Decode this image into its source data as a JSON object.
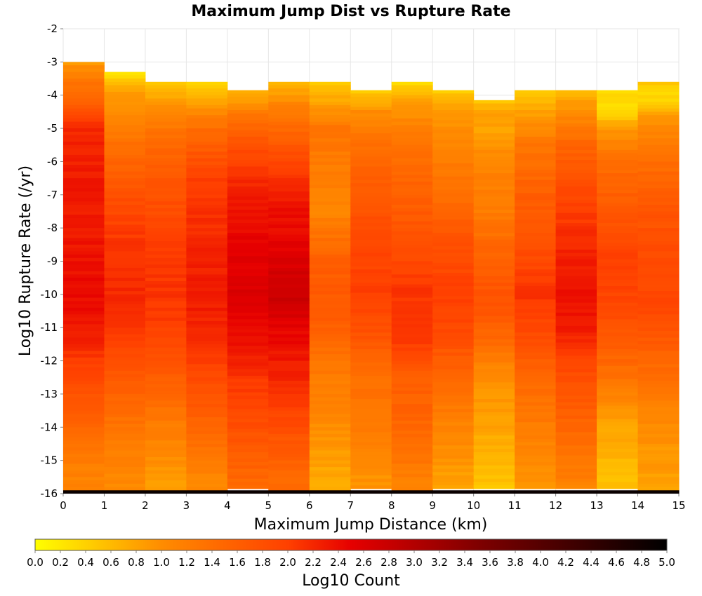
{
  "chart_data": {
    "type": "heatmap",
    "title": "Maximum Jump Dist vs Rupture Rate",
    "xlabel": "Maximum Jump Distance (km)",
    "ylabel": "Log10 Rupture Rate (/yr)",
    "xlim": [
      0,
      15
    ],
    "ylim": [
      -16,
      -2
    ],
    "x_ticks": [
      "0",
      "1",
      "2",
      "3",
      "4",
      "5",
      "6",
      "7",
      "8",
      "9",
      "10",
      "11",
      "12",
      "13",
      "14",
      "15"
    ],
    "y_ticks": [
      "-2",
      "-3",
      "-4",
      "-5",
      "-6",
      "-7",
      "-8",
      "-9",
      "-10",
      "-11",
      "-12",
      "-13",
      "-14",
      "-15",
      "-16"
    ],
    "grid": true,
    "x_bin_width": 1,
    "y_bin_width": 0.1,
    "colorbar": {
      "label": "Log10 Count",
      "range": [
        0,
        5
      ],
      "ticks": [
        "0.0",
        "0.2",
        "0.4",
        "0.6",
        "0.8",
        "1.0",
        "1.2",
        "1.4",
        "1.6",
        "1.8",
        "2.0",
        "2.2",
        "2.4",
        "2.6",
        "2.8",
        "3.0",
        "3.2",
        "3.4",
        "3.6",
        "3.8",
        "4.0",
        "4.2",
        "4.4",
        "4.6",
        "4.8",
        "5.0"
      ],
      "colors": [
        "#ffff00",
        "#ff8c00",
        "#ff4000",
        "#e60000",
        "#800000",
        "#000000"
      ]
    },
    "columns": [
      {
        "x": 0.5,
        "top": -3.0,
        "profile": [
          [
            -3.0,
            0.9
          ],
          [
            -3.6,
            1.3
          ],
          [
            -4.4,
            1.7
          ],
          [
            -5.0,
            2.2
          ],
          [
            -6.5,
            2.3
          ],
          [
            -8.0,
            2.3
          ],
          [
            -9.5,
            2.4
          ],
          [
            -10.5,
            2.4
          ],
          [
            -11.5,
            2.2
          ],
          [
            -12.5,
            1.9
          ],
          [
            -13.5,
            1.6
          ],
          [
            -15.0,
            1.2
          ],
          [
            -15.9,
            1.1
          ]
        ]
      },
      {
        "x": 1.5,
        "top": -3.3,
        "profile": [
          [
            -3.3,
            0.2
          ],
          [
            -3.8,
            0.8
          ],
          [
            -4.5,
            1.0
          ],
          [
            -5.5,
            1.4
          ],
          [
            -7.0,
            1.8
          ],
          [
            -8.5,
            2.1
          ],
          [
            -10.0,
            2.2
          ],
          [
            -11.0,
            2.1
          ],
          [
            -12.5,
            1.7
          ],
          [
            -14.0,
            1.3
          ],
          [
            -15.9,
            1.0
          ]
        ]
      },
      {
        "x": 2.5,
        "top": -3.6,
        "profile": [
          [
            -3.6,
            0.4
          ],
          [
            -4.2,
            0.9
          ],
          [
            -5.0,
            1.3
          ],
          [
            -6.5,
            1.7
          ],
          [
            -8.5,
            2.0
          ],
          [
            -10.0,
            2.1
          ],
          [
            -11.0,
            2.0
          ],
          [
            -12.5,
            1.6
          ],
          [
            -14.0,
            1.2
          ],
          [
            -15.9,
            0.8
          ]
        ]
      },
      {
        "x": 3.5,
        "top": -3.6,
        "profile": [
          [
            -3.6,
            0.3
          ],
          [
            -4.2,
            0.8
          ],
          [
            -5.0,
            1.4
          ],
          [
            -6.5,
            2.0
          ],
          [
            -8.5,
            2.2
          ],
          [
            -10.0,
            2.3
          ],
          [
            -11.0,
            2.2
          ],
          [
            -12.5,
            1.9
          ],
          [
            -14.0,
            1.5
          ],
          [
            -15.9,
            1.0
          ]
        ]
      },
      {
        "x": 4.5,
        "top": -3.85,
        "profile": [
          [
            -3.85,
            0.6
          ],
          [
            -4.5,
            1.2
          ],
          [
            -5.5,
            1.8
          ],
          [
            -7.0,
            2.3
          ],
          [
            -8.5,
            2.5
          ],
          [
            -10.0,
            2.6
          ],
          [
            -11.5,
            2.4
          ],
          [
            -12.5,
            2.1
          ],
          [
            -14.0,
            1.8
          ],
          [
            -15.9,
            1.4
          ]
        ]
      },
      {
        "x": 5.5,
        "top": -3.6,
        "profile": [
          [
            -3.6,
            0.6
          ],
          [
            -4.3,
            1.1
          ],
          [
            -5.5,
            1.7
          ],
          [
            -7.0,
            2.3
          ],
          [
            -8.5,
            2.5
          ],
          [
            -10.0,
            2.8
          ],
          [
            -11.0,
            2.5
          ],
          [
            -12.0,
            2.3
          ],
          [
            -13.0,
            2.1
          ],
          [
            -14.5,
            1.7
          ],
          [
            -15.9,
            1.4
          ]
        ]
      },
      {
        "x": 6.5,
        "top": -3.6,
        "profile": [
          [
            -3.6,
            0.4
          ],
          [
            -4.2,
            0.8
          ],
          [
            -5.0,
            1.3
          ],
          [
            -6.5,
            1.2
          ],
          [
            -7.5,
            1.1
          ],
          [
            -9.0,
            1.6
          ],
          [
            -10.5,
            1.7
          ],
          [
            -12.0,
            1.3
          ],
          [
            -14.0,
            1.0
          ],
          [
            -15.9,
            0.7
          ]
        ]
      },
      {
        "x": 7.5,
        "top": -3.85,
        "profile": [
          [
            -3.85,
            0.4
          ],
          [
            -4.5,
            1.0
          ],
          [
            -5.5,
            1.4
          ],
          [
            -7.0,
            1.7
          ],
          [
            -8.5,
            1.9
          ],
          [
            -10.0,
            2.0
          ],
          [
            -11.0,
            1.8
          ],
          [
            -12.5,
            1.4
          ],
          [
            -14.0,
            1.2
          ],
          [
            -15.9,
            0.9
          ]
        ]
      },
      {
        "x": 8.5,
        "top": -3.6,
        "profile": [
          [
            -3.6,
            0.3
          ],
          [
            -4.2,
            0.8
          ],
          [
            -5.0,
            1.2
          ],
          [
            -6.5,
            1.5
          ],
          [
            -8.5,
            1.8
          ],
          [
            -10.0,
            2.1
          ],
          [
            -11.5,
            2.0
          ],
          [
            -12.5,
            1.6
          ],
          [
            -14.0,
            1.5
          ],
          [
            -15.0,
            1.3
          ],
          [
            -15.9,
            1.1
          ]
        ]
      },
      {
        "x": 9.5,
        "top": -3.85,
        "profile": [
          [
            -3.85,
            0.4
          ],
          [
            -4.5,
            0.9
          ],
          [
            -5.5,
            1.1
          ],
          [
            -7.0,
            1.4
          ],
          [
            -8.5,
            1.8
          ],
          [
            -10.0,
            2.0
          ],
          [
            -11.0,
            1.9
          ],
          [
            -12.5,
            1.5
          ],
          [
            -14.0,
            1.1
          ],
          [
            -15.9,
            0.8
          ]
        ]
      },
      {
        "x": 10.5,
        "top": -4.15,
        "profile": [
          [
            -4.15,
            0.5
          ],
          [
            -4.6,
            0.9
          ],
          [
            -5.0,
            0.8
          ],
          [
            -6.0,
            1.1
          ],
          [
            -7.5,
            1.2
          ],
          [
            -9.0,
            1.6
          ],
          [
            -10.3,
            1.8
          ],
          [
            -11.5,
            1.4
          ],
          [
            -12.5,
            1.0
          ],
          [
            -14.0,
            0.8
          ],
          [
            -15.9,
            0.5
          ]
        ]
      },
      {
        "x": 11.5,
        "top": -3.85,
        "profile": [
          [
            -3.85,
            0.4
          ],
          [
            -4.5,
            0.8
          ],
          [
            -5.5,
            1.3
          ],
          [
            -7.0,
            1.6
          ],
          [
            -8.5,
            1.8
          ],
          [
            -10.0,
            2.1
          ],
          [
            -11.0,
            1.9
          ],
          [
            -12.5,
            1.5
          ],
          [
            -14.0,
            1.2
          ],
          [
            -15.9,
            0.9
          ]
        ]
      },
      {
        "x": 12.5,
        "top": -3.85,
        "profile": [
          [
            -3.85,
            0.6
          ],
          [
            -4.5,
            1.0
          ],
          [
            -5.5,
            1.5
          ],
          [
            -7.0,
            1.9
          ],
          [
            -8.5,
            2.2
          ],
          [
            -10.0,
            2.4
          ],
          [
            -11.0,
            2.3
          ],
          [
            -12.5,
            1.8
          ],
          [
            -14.0,
            1.5
          ],
          [
            -15.9,
            1.1
          ]
        ]
      },
      {
        "x": 13.5,
        "top": -3.85,
        "profile": [
          [
            -3.85,
            0.3
          ],
          [
            -4.5,
            0.3
          ],
          [
            -5.0,
            0.9
          ],
          [
            -6.0,
            1.4
          ],
          [
            -7.5,
            1.7
          ],
          [
            -9.0,
            2.0
          ],
          [
            -10.5,
            1.9
          ],
          [
            -12.0,
            1.5
          ],
          [
            -14.0,
            0.8
          ],
          [
            -15.9,
            0.5
          ]
        ]
      },
      {
        "x": 14.5,
        "top": -3.6,
        "profile": [
          [
            -3.6,
            0.5
          ],
          [
            -4.2,
            0.3
          ],
          [
            -4.6,
            0.9
          ],
          [
            -6.0,
            1.4
          ],
          [
            -7.5,
            1.7
          ],
          [
            -9.0,
            1.9
          ],
          [
            -10.5,
            1.9
          ],
          [
            -12.0,
            1.5
          ],
          [
            -14.0,
            1.0
          ],
          [
            -15.9,
            0.8
          ]
        ]
      }
    ],
    "bottom_row": {
      "y": -16.0,
      "value": 4.9
    }
  }
}
